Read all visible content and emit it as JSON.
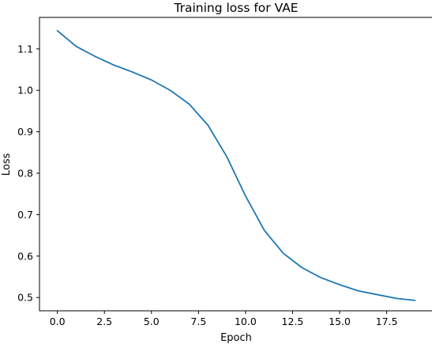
{
  "chart_data": {
    "type": "line",
    "title": "Training loss for VAE",
    "xlabel": "Epoch",
    "ylabel": "Loss",
    "xlim": [
      -0.95,
      19.95
    ],
    "ylim": [
      0.468,
      1.176
    ],
    "xticks": [
      0.0,
      2.5,
      5.0,
      7.5,
      10.0,
      12.5,
      15.0,
      17.5
    ],
    "xtick_labels": [
      "0.0",
      "2.5",
      "5.0",
      "7.5",
      "10.0",
      "12.5",
      "15.0",
      "17.5"
    ],
    "yticks": [
      0.5,
      0.6,
      0.7,
      0.8,
      0.9,
      1.0,
      1.1
    ],
    "ytick_labels": [
      "0.5",
      "0.6",
      "0.7",
      "0.8",
      "0.9",
      "1.0",
      "1.1"
    ],
    "grid": false,
    "color": "#1f77b4",
    "series": [
      {
        "x": [
          0,
          1,
          2,
          3,
          4,
          5,
          6,
          7,
          8,
          9,
          10,
          11,
          12,
          13,
          14,
          15,
          16,
          17,
          18,
          19
        ],
        "values": [
          1.144,
          1.106,
          1.082,
          1.061,
          1.044,
          1.025,
          1.0,
          0.967,
          0.916,
          0.84,
          0.745,
          0.662,
          0.607,
          0.572,
          0.548,
          0.531,
          0.516,
          0.507,
          0.498,
          0.493
        ]
      }
    ]
  }
}
